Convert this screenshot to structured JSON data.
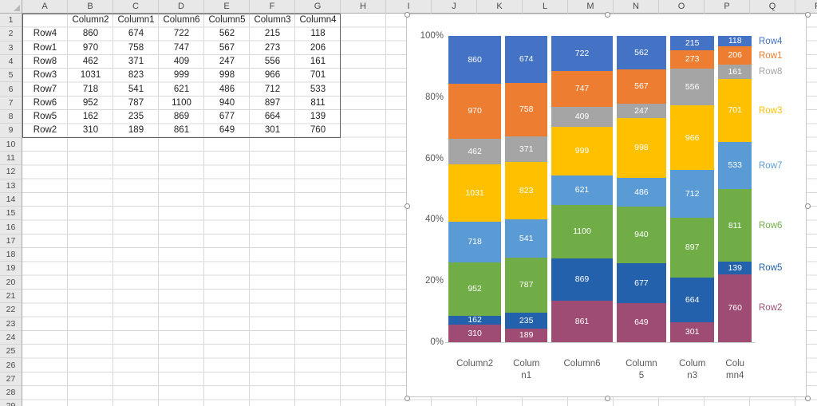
{
  "sheet": {
    "column_headers": [
      "A",
      "B",
      "C",
      "D",
      "E",
      "F",
      "G",
      "H",
      "I",
      "J",
      "K",
      "L",
      "M",
      "N",
      "O",
      "P",
      "Q",
      "R"
    ],
    "visible_row_numbers": 29,
    "corner_cell_text": ""
  },
  "chart_data": {
    "type": "bar",
    "subtype": "100%-stacked-columns-variable-width",
    "title": "",
    "categories": [
      "Column2",
      "Column1",
      "Column6",
      "Column5",
      "Column3",
      "Column4"
    ],
    "category_axis_labels_display": [
      "Column2",
      "Colum\nn1",
      "Column6",
      "Column\n5",
      "Colum\nn3",
      "Colu\nmn4"
    ],
    "series": [
      {
        "name": "Row4",
        "color": "#4472C4",
        "values": [
          860,
          674,
          722,
          562,
          215,
          118
        ]
      },
      {
        "name": "Row1",
        "color": "#ED7D31",
        "values": [
          970,
          758,
          747,
          567,
          273,
          206
        ]
      },
      {
        "name": "Row8",
        "color": "#A5A5A5",
        "values": [
          462,
          371,
          409,
          247,
          556,
          161
        ]
      },
      {
        "name": "Row3",
        "color": "#FFC000",
        "values": [
          1031,
          823,
          999,
          998,
          966,
          701
        ]
      },
      {
        "name": "Row7",
        "color": "#5B9BD5",
        "values": [
          718,
          541,
          621,
          486,
          712,
          533
        ]
      },
      {
        "name": "Row6",
        "color": "#70AD47",
        "values": [
          952,
          787,
          1100,
          940,
          897,
          811
        ]
      },
      {
        "name": "Row5",
        "color": "#2361AC",
        "values": [
          162,
          235,
          869,
          677,
          664,
          139
        ]
      },
      {
        "name": "Row2",
        "color": "#9E4C73",
        "values": [
          310,
          189,
          861,
          649,
          301,
          760
        ]
      }
    ],
    "stack_order": "series listed top-to-bottom within each column; Row2 sits on the baseline",
    "yticks": [
      "100%",
      "80%",
      "60%",
      "40%",
      "20%",
      "0%"
    ],
    "ylim": [
      0,
      1
    ],
    "grid": false,
    "data_labels": true,
    "legend_position": "colored series names right of last column"
  },
  "colors": {
    "header_bg": "#E8E8E8",
    "header_text": "#4A4A4A",
    "gridline": "#D9D9D9",
    "table_border": "#5F5F5F",
    "axis_text": "#595959",
    "chart_border": "#C6C6C6",
    "cell_text": "#1F1F1F",
    "data_label_text": "#FFFFFF"
  }
}
